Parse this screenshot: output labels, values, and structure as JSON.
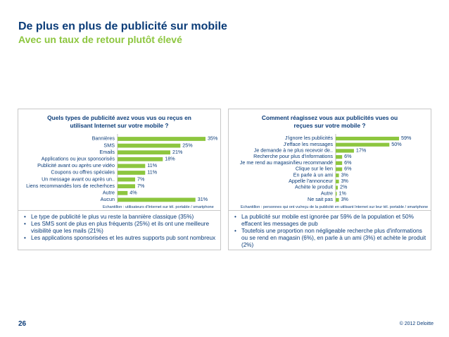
{
  "header": {
    "title": "De plus en plus de publicité sur mobile",
    "subtitle": "Avec un taux de retour plutôt élevé"
  },
  "colors": {
    "bar": "#8dc63f",
    "text": "#0b3c78",
    "subtitle": "#8dc63f"
  },
  "chart_data": [
    {
      "type": "bar",
      "orientation": "horizontal",
      "title": "Quels types de publicité avez vous vus ou reçus en utilisant Internet sur votre mobile ?",
      "categories": [
        "Bannières",
        "SMS",
        "Emails",
        "Applications ou jeux sponsorisés",
        "Publicité avant ou après une vidéo",
        "Coupons ou offres spéciales",
        "Un message avant ou après un..",
        "Liens recommandés lors de recherhces",
        "Autre",
        "Aucun"
      ],
      "values": [
        35,
        25,
        21,
        18,
        11,
        11,
        7,
        7,
        4,
        31
      ],
      "value_labels": [
        "35%",
        "25%",
        "21%",
        "18%",
        "11%",
        "11%",
        "7%",
        "7%",
        "4%",
        "31%"
      ],
      "unit": "%",
      "xlim": [
        0,
        35
      ],
      "sample_note": "Echantillon : utilisateurs d'Internet sur tél. portable / smartphone"
    },
    {
      "type": "bar",
      "orientation": "horizontal",
      "title": "Comment réagissez vous aux publicités vues ou reçues sur votre mobile ?",
      "categories": [
        "J'ignore les publicités",
        "J'efface les messages",
        "Je demande à ne plus recevoir de..",
        "Recherche pour plus d'informations",
        "Je me rend au magasin/lieu recommandé",
        "Clique sur le lien",
        "En parle à un ami",
        "Appelle l'annonceur",
        "Achète le produit",
        "Autre",
        "Ne sait pas"
      ],
      "values": [
        59,
        50,
        17,
        6,
        6,
        6,
        3,
        3,
        2,
        1,
        3
      ],
      "value_labels": [
        "59%",
        "50%",
        "17%",
        "6%",
        "6%",
        "6%",
        "3%",
        "3%",
        "2%",
        "1%",
        "3%"
      ],
      "unit": "%",
      "xlim": [
        0,
        59
      ],
      "sample_note": "Echantillon : personnes qui ont vu/reçu de la publicité en utilisant Internet sur leur tél. portable / smartphone"
    }
  ],
  "bullets_left": [
    "Le type de publicité le plus vu reste la bannière classique (35%)",
    "Les SMS sont de plus en plus fréquents (25%) et ils ont une meilleure visibilité que les mails (21%)",
    "Les applications sponsorisées et les autres supports pub sont nombreux"
  ],
  "bullets_right": [
    "La publicité sur mobile est ignorée par 59% de la population et 50% effacent les messages de pub",
    "Toutefois une proportion non négligeable recherche plus d'informations ou se rend en magasin (6%), en parle à un ami  (3%) et achète le produit (2%)"
  ],
  "footer": {
    "page_number": "26",
    "copyright": "© 2012 Deloitte"
  }
}
